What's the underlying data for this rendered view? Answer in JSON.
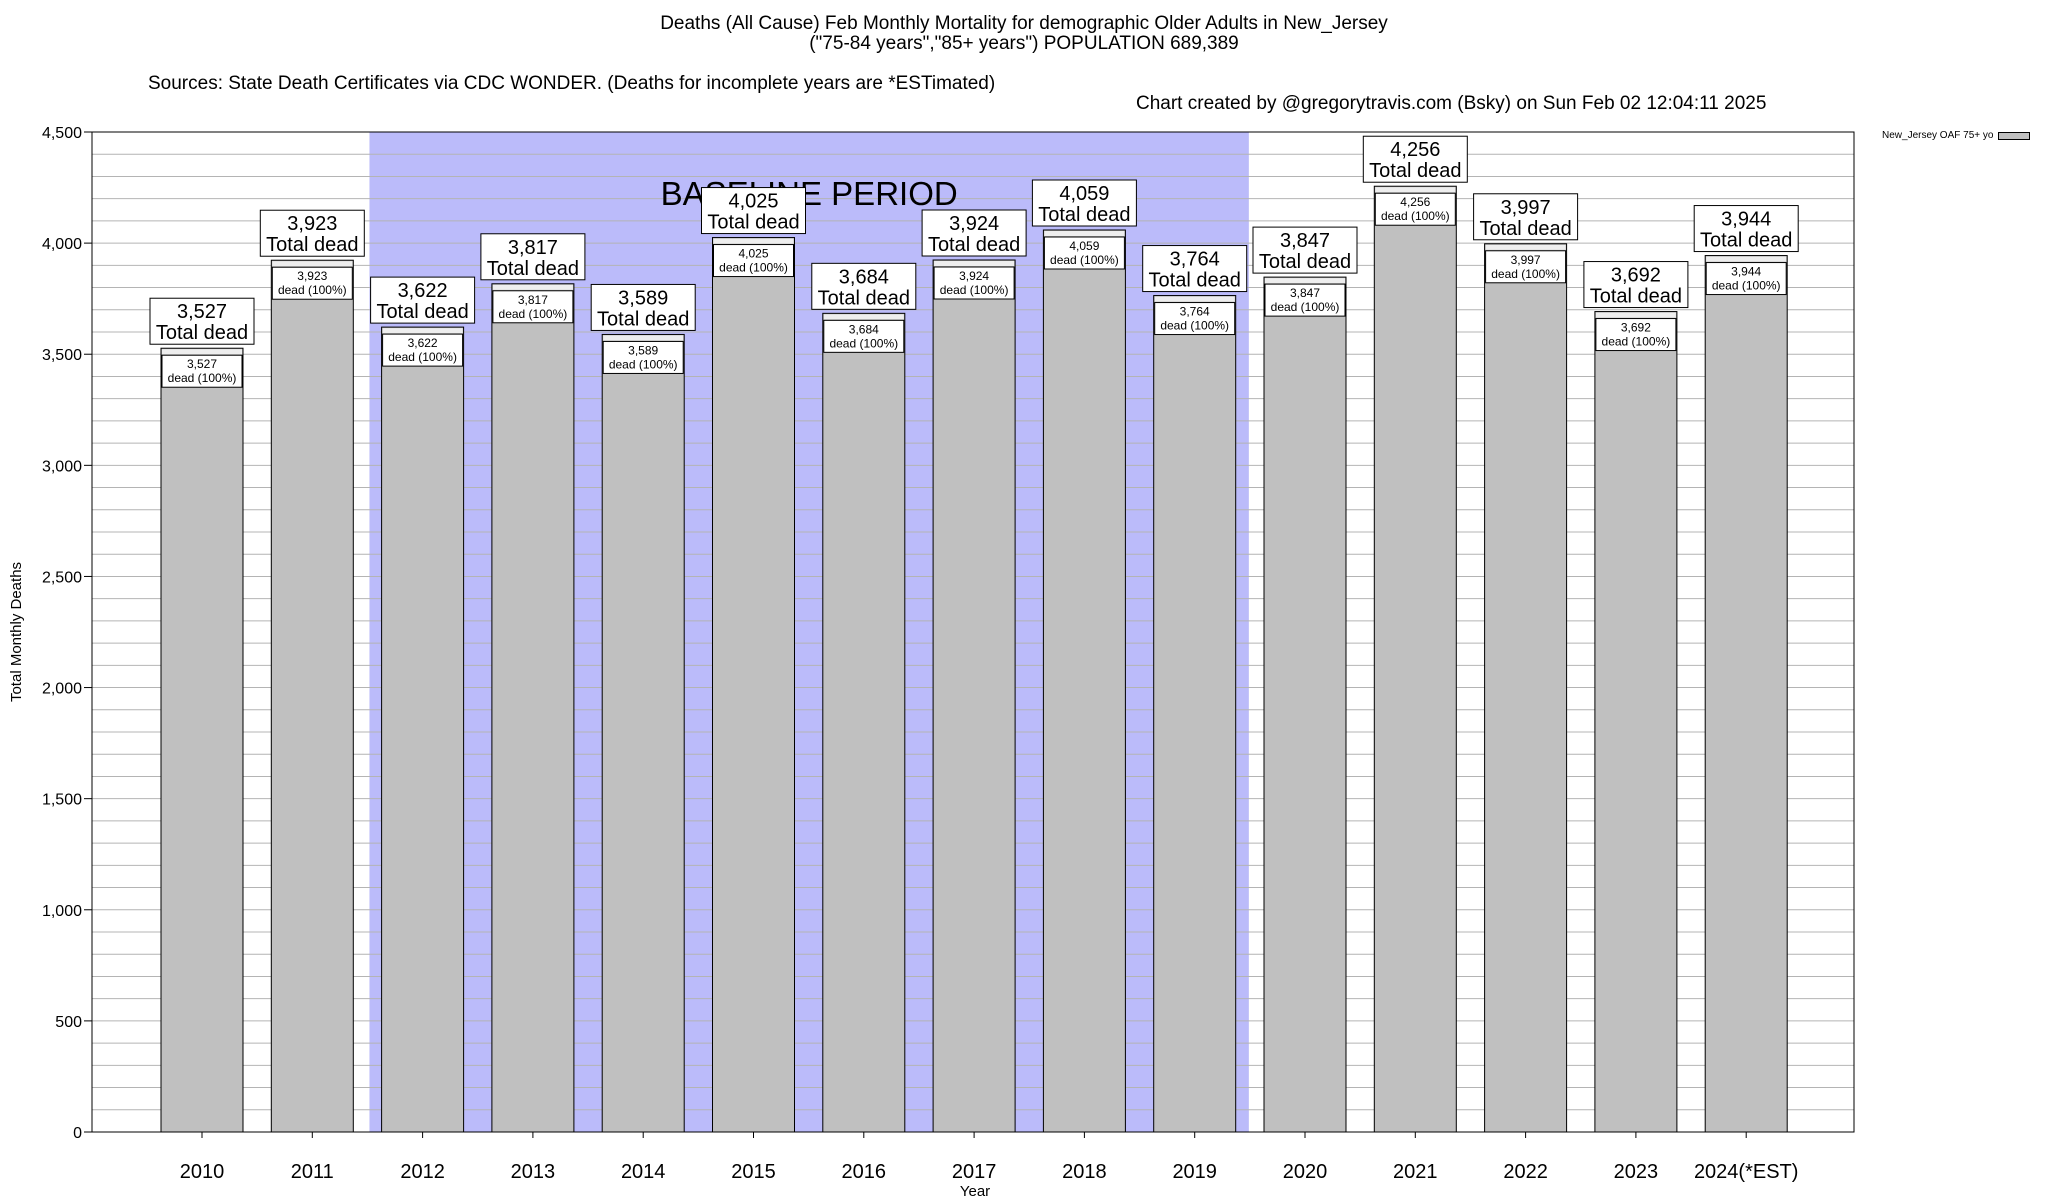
{
  "title": {
    "line1": "Deaths (All Cause) Feb Monthly Mortality for demographic Older Adults in New_Jersey",
    "line2": "(\"75-84 years\",\"85+ years\") POPULATION 689,389",
    "sources": "Sources: State Death Certificates via CDC WONDER. (Deaths for incomplete years are *ESTimated)",
    "credit": "Chart created by @gregorytravis.com (Bsky) on Sun Feb 02 12:04:11 2025"
  },
  "chart_data": {
    "type": "bar",
    "categories": [
      "2010",
      "2011",
      "2012",
      "2013",
      "2014",
      "2015",
      "2016",
      "2017",
      "2018",
      "2019",
      "2020",
      "2021",
      "2022",
      "2023",
      "2024(*EST)"
    ],
    "values": [
      3527,
      3923,
      3622,
      3817,
      3589,
      4025,
      3684,
      3924,
      4059,
      3764,
      3847,
      4256,
      3997,
      3692,
      3944
    ],
    "value_labels": [
      "3,527",
      "3,923",
      "3,622",
      "3,817",
      "3,589",
      "4,025",
      "3,684",
      "3,924",
      "4,059",
      "3,764",
      "3,847",
      "4,256",
      "3,997",
      "3,692",
      "3,944"
    ],
    "total_label": "Total dead",
    "inner_label": "dead (100%)",
    "xlabel": "Year",
    "ylabel": "Total Monthly Deaths",
    "ylim": [
      0,
      4500
    ],
    "yticks": [
      0,
      500,
      1000,
      1500,
      2000,
      2500,
      3000,
      3500,
      4000,
      4500
    ],
    "ytick_labels": [
      "0",
      "500",
      "1,000",
      "1,500",
      "2,000",
      "2,500",
      "3,000",
      "3,500",
      "4,000",
      "4,500"
    ],
    "minor_grid_step": 100,
    "grid": true,
    "baseline_period": {
      "label": "BASELINE PERIOD",
      "start": "2012",
      "end": "2019"
    },
    "legend": {
      "label": "New_Jersey OAF 75+ yo",
      "position": "top-right"
    },
    "colors": {
      "bar": "#c0c0c0",
      "baseline": "#bbbbfa",
      "grid": "#b4b4b4"
    }
  }
}
